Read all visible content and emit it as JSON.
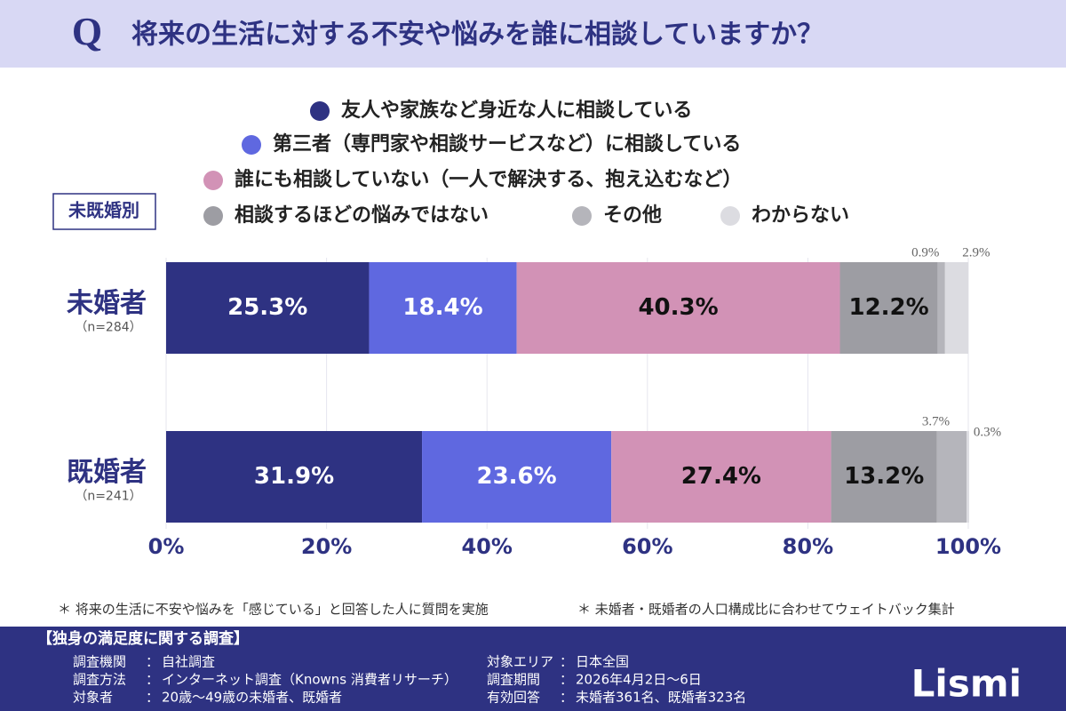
{
  "chart_data": {
    "type": "bar",
    "orientation": "horizontal",
    "stacked": true,
    "q_mark": "Q",
    "title": "将来の生活に対する不安や悩みを誰に相談していますか？",
    "group_label": "未既婚別",
    "categories": [
      "未婚者",
      "既婚者"
    ],
    "category_notes": [
      "（n=284）",
      "（n=241）"
    ],
    "series": [
      {
        "name": "友人や家族など身近な人に相談している",
        "color": "#2e3282",
        "values": [
          25.3,
          31.9
        ],
        "value_labels": [
          "25.3%",
          "31.9%"
        ]
      },
      {
        "name": "第三者（専門家や相談サービスなど）に相談している",
        "color": "#5f68e0",
        "values": [
          18.4,
          23.6
        ],
        "value_labels": [
          "18.4%",
          "23.6%"
        ]
      },
      {
        "name": "誰にも相談していない（一人で解決する、抱え込むなど）",
        "color": "#d292b6",
        "values": [
          40.3,
          27.4
        ],
        "value_labels": [
          "40.3%",
          "27.4%"
        ]
      },
      {
        "name": "相談するほどの悩みではない",
        "color": "#9d9da3",
        "values": [
          12.2,
          13.2
        ],
        "value_labels": [
          "12.2%",
          "13.2%"
        ]
      },
      {
        "name": "その他",
        "color": "#b5b5bb",
        "values": [
          0.9,
          3.7
        ],
        "value_labels": [
          "0.9%",
          "3.7%"
        ]
      },
      {
        "name": "わからない",
        "color": "#dcdce1",
        "values": [
          2.9,
          0.3
        ],
        "value_labels": [
          "2.9%",
          "0.3%"
        ]
      }
    ],
    "xlim": [
      0,
      100
    ],
    "xticks": [
      {
        "value": 0,
        "label": "0%"
      },
      {
        "value": 20,
        "label": "20%"
      },
      {
        "value": 40,
        "label": "40%"
      },
      {
        "value": 60,
        "label": "60%"
      },
      {
        "value": 80,
        "label": "80%"
      },
      {
        "value": 100,
        "label": "100%"
      }
    ],
    "grid": true
  },
  "footnotes": [
    "＊ 将来の生活に不安や悩みを「感じている」と回答した人に質問を実施",
    "＊ 未婚者・既婚者の人口構成比に合わせてウェイトバック集計"
  ],
  "survey": {
    "heading": "【独身の満足度に関する調査】",
    "separator": "：",
    "items": [
      {
        "label": "調査機関",
        "value": "自社調査"
      },
      {
        "label": "調査方法",
        "value": "インターネット調査（Knowns 消費者リサーチ）"
      },
      {
        "label": "対象者",
        "value": "20歳～49歳の未婚者、既婚者"
      },
      {
        "label": "対象エリア",
        "value": "日本全国"
      },
      {
        "label": "調査期間",
        "value": "2026年4月2日～6日"
      },
      {
        "label": "有効回答",
        "value": "未婚者361名、既婚者323名"
      }
    ]
  },
  "logo": "Lismi"
}
